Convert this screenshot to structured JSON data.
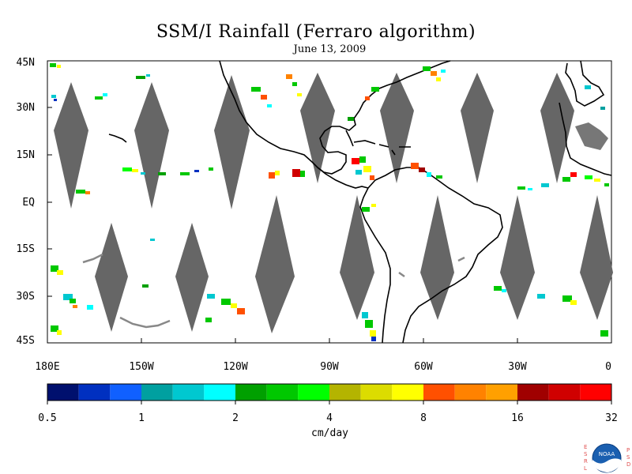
{
  "title": "SSM/I Rainfall (Ferraro algorithm)",
  "subtitle": "June 13, 2009",
  "latitude_labels": [
    "45N",
    "30N",
    "15N",
    "EQ",
    "15S",
    "30S",
    "45S"
  ],
  "longitude_labels": [
    "180E",
    "150W",
    "120W",
    "90W",
    "60W",
    "30W",
    "0"
  ],
  "colorbar": {
    "colors": [
      "#00106e",
      "#0030c0",
      "#1060ff",
      "#00a0a0",
      "#00c8d0",
      "#00ffff",
      "#00a000",
      "#00c800",
      "#00ff00",
      "#b4b400",
      "#dcdc00",
      "#ffff00",
      "#ff5000",
      "#ff8200",
      "#ffa000",
      "#a00000",
      "#d00000",
      "#ff0000"
    ],
    "tick_labels": [
      "0.5",
      "1",
      "2",
      "4",
      "8",
      "16",
      "32"
    ],
    "units": "cm/day"
  },
  "logo": {
    "left_letters": [
      "E",
      "S",
      "R",
      "L"
    ],
    "right_letters": [
      "P",
      "S",
      "D"
    ],
    "center_text": "NOAA"
  }
}
